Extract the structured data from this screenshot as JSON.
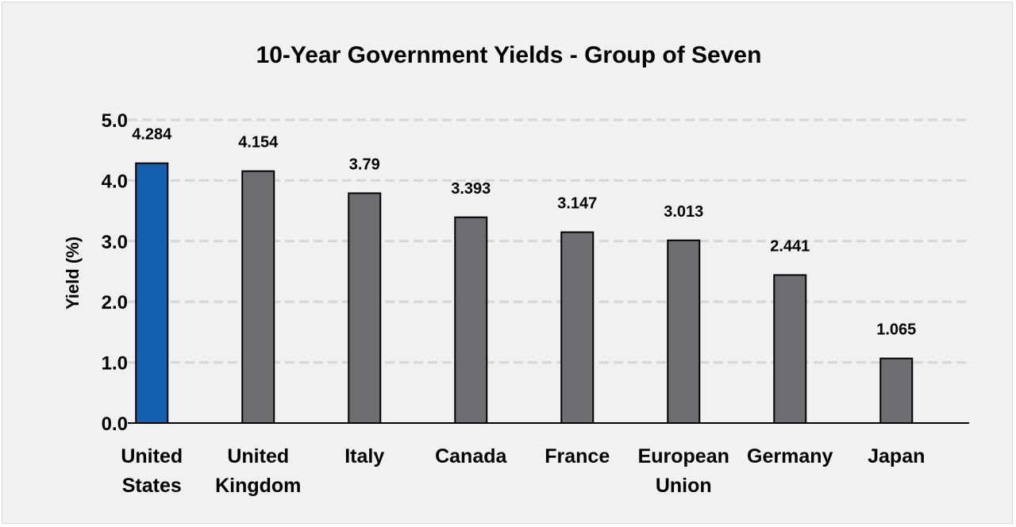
{
  "chart_data": {
    "type": "bar",
    "title": "10-Year Government Yields - Group of Seven",
    "xlabel": "",
    "ylabel": "Yield (%)",
    "ylim": [
      0,
      5
    ],
    "yticks": [
      "0.0",
      "1.0",
      "2.0",
      "3.0",
      "4.0",
      "5.0"
    ],
    "grid": true,
    "categories": [
      [
        "United",
        "States"
      ],
      [
        "United",
        "Kingdom"
      ],
      [
        "Italy"
      ],
      [
        "Canada"
      ],
      [
        "France"
      ],
      [
        "European",
        "Union"
      ],
      [
        "Germany"
      ],
      [
        "Japan"
      ]
    ],
    "values": [
      4.284,
      4.154,
      3.79,
      3.393,
      3.147,
      3.013,
      2.441,
      1.065
    ],
    "value_labels": [
      "4.284",
      "4.154",
      "3.79",
      "3.393",
      "3.147",
      "3.013",
      "2.441",
      "1.065"
    ],
    "highlight_index": 0,
    "colors": {
      "highlight": "#1560b0",
      "bar": "#6d6e72",
      "bar_stroke": "#000000",
      "grid": "#d6d6d6",
      "background": "#f1f1f1"
    }
  }
}
